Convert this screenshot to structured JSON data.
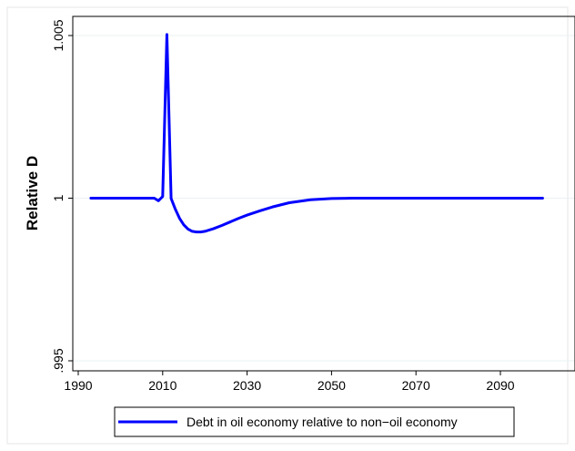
{
  "chart_data": {
    "type": "line",
    "title": "",
    "xlabel": "",
    "ylabel": "Relative D",
    "xlim": [
      1993,
      2100
    ],
    "ylim": [
      0.9952,
      1.0053
    ],
    "xticks": [
      1990,
      2010,
      2030,
      2050,
      2070,
      2090
    ],
    "xtick_labels": [
      "1990",
      "2010",
      "2030",
      "2050",
      "2070",
      "2090"
    ],
    "yticks": [
      0.995,
      1.0,
      1.005
    ],
    "ytick_labels": [
      ".995",
      "1",
      "1.005"
    ],
    "grid": "horizontal-only",
    "legend_position": "bottom",
    "series": [
      {
        "name": "Debt in oil economy relative to non−oil economy",
        "color": "#0000ff",
        "x": [
          1993,
          2000,
          2005,
          2008,
          2009,
          2010,
          2011,
          2012,
          2013,
          2014,
          2015,
          2016,
          2017,
          2018,
          2019,
          2020,
          2022,
          2024,
          2026,
          2028,
          2030,
          2033,
          2036,
          2040,
          2045,
          2050,
          2055,
          2060,
          2070,
          2080,
          2090,
          2100
        ],
        "y": [
          1.0,
          1.0,
          1.0,
          1.0,
          0.99992,
          1.00005,
          1.00503,
          0.99999,
          0.99966,
          0.99938,
          0.99918,
          0.99905,
          0.99898,
          0.99896,
          0.99896,
          0.99898,
          0.99906,
          0.99916,
          0.99927,
          0.99938,
          0.99948,
          0.99961,
          0.99973,
          0.99986,
          0.99995,
          0.99999,
          1.0,
          1.0,
          1.0,
          1.0,
          1.0,
          1.0
        ]
      }
    ]
  }
}
